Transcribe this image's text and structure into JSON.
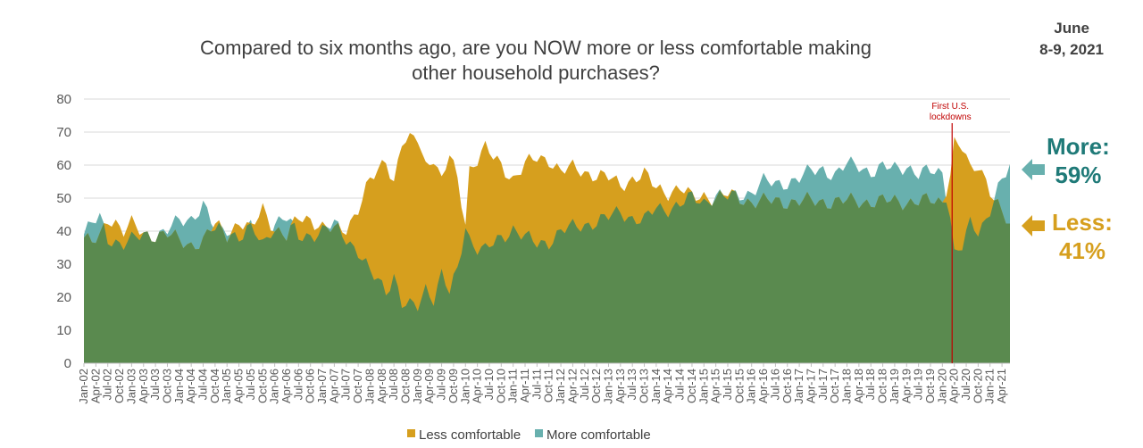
{
  "header": {
    "title": "Compared to six months ago, are you NOW more or less comfortable making\nother household purchases?",
    "date_line1": "June",
    "date_line2": "8-9, 2021"
  },
  "callouts": {
    "more_label": "More:",
    "more_value": "59%",
    "less_label": "Less:",
    "less_value": "41%"
  },
  "colors": {
    "less": "#d69f1e",
    "more": "#68b0ae",
    "overlap": "#5a8a4f",
    "annotation": "#c00000"
  },
  "chart_data": {
    "type": "area",
    "ylim": [
      0,
      80
    ],
    "yticks": [
      0,
      10,
      20,
      30,
      40,
      50,
      60,
      70,
      80
    ],
    "grid": true,
    "legend_position": "bottom",
    "x_start": "2002-01",
    "x_end": "2021-06",
    "x_tick_labels": [
      "Jan-02",
      "Apr-02",
      "Jul-02",
      "Oct-02",
      "Jan-03",
      "Apr-03",
      "Jul-03",
      "Oct-03",
      "Jan-04",
      "Apr-04",
      "Jul-04",
      "Oct-04",
      "Jan-05",
      "Apr-05",
      "Jul-05",
      "Oct-05",
      "Jan-06",
      "Apr-06",
      "Jul-06",
      "Oct-06",
      "Jan-07",
      "Apr-07",
      "Jul-07",
      "Oct-07",
      "Jan-08",
      "Apr-08",
      "Jul-08",
      "Oct-08",
      "Jan-09",
      "Apr-09",
      "Jul-09",
      "Oct-09",
      "Jan-10",
      "Apr-10",
      "Jul-10",
      "Oct-10",
      "Jan-11",
      "Apr-11",
      "Jul-11",
      "Oct-11",
      "Jan-12",
      "Apr-12",
      "Jul-12",
      "Oct-12",
      "Jan-13",
      "Apr-13",
      "Jul-13",
      "Oct-13",
      "Jan-14",
      "Apr-14",
      "Jul-14",
      "Oct-14",
      "Jan-15",
      "Apr-15",
      "Jul-15",
      "Oct-15",
      "Jan-16",
      "Apr-16",
      "Jul-16",
      "Oct-16",
      "Jan-17",
      "Apr-17",
      "Jul-17",
      "Oct-17",
      "Jan-18",
      "Apr-18",
      "Jul-18",
      "Oct-18",
      "Jan-19",
      "Apr-19",
      "Jul-19",
      "Oct-19",
      "Jan-20",
      "Apr-20",
      "Jul-20",
      "Oct-20",
      "Jan-21",
      "Apr-21"
    ],
    "series": [
      {
        "name": "Less comfortable",
        "color": "#d69f1e",
        "points": [
          [
            "2002-01",
            38
          ],
          [
            "2002-03",
            36
          ],
          [
            "2002-05",
            38
          ],
          [
            "2002-07",
            44
          ],
          [
            "2002-09",
            43
          ],
          [
            "2002-11",
            40
          ],
          [
            "2003-01",
            42
          ],
          [
            "2003-04",
            39
          ],
          [
            "2003-07",
            39
          ],
          [
            "2003-10",
            39
          ],
          [
            "2004-01",
            37
          ],
          [
            "2004-04",
            36
          ],
          [
            "2004-07",
            37
          ],
          [
            "2004-10",
            42
          ],
          [
            "2005-01",
            39
          ],
          [
            "2005-04",
            43
          ],
          [
            "2005-07",
            40
          ],
          [
            "2005-10",
            47
          ],
          [
            "2006-01",
            41
          ],
          [
            "2006-04",
            38
          ],
          [
            "2006-07",
            44
          ],
          [
            "2006-10",
            44
          ],
          [
            "2007-01",
            41
          ],
          [
            "2007-04",
            40
          ],
          [
            "2007-07",
            41
          ],
          [
            "2007-10",
            47
          ],
          [
            "2008-01",
            55
          ],
          [
            "2008-03",
            58
          ],
          [
            "2008-05",
            62
          ],
          [
            "2008-07",
            55
          ],
          [
            "2008-09",
            67
          ],
          [
            "2008-11",
            67
          ],
          [
            "2009-01",
            68
          ],
          [
            "2009-03",
            60
          ],
          [
            "2009-05",
            63
          ],
          [
            "2009-07",
            55
          ],
          [
            "2009-09",
            63
          ],
          [
            "2009-11",
            55
          ],
          [
            "2010-01",
            43
          ],
          [
            "2010-02",
            59
          ],
          [
            "2010-04",
            62
          ],
          [
            "2010-06",
            65
          ],
          [
            "2010-08",
            62
          ],
          [
            "2010-10",
            60
          ],
          [
            "2011-01",
            56
          ],
          [
            "2011-04",
            60
          ],
          [
            "2011-07",
            62
          ],
          [
            "2011-10",
            62
          ],
          [
            "2012-01",
            58
          ],
          [
            "2012-04",
            59
          ],
          [
            "2012-07",
            58
          ],
          [
            "2012-10",
            57
          ],
          [
            "2013-01",
            56
          ],
          [
            "2013-04",
            54
          ],
          [
            "2013-07",
            56
          ],
          [
            "2013-10",
            57
          ],
          [
            "2014-01",
            53
          ],
          [
            "2014-04",
            52
          ],
          [
            "2014-07",
            53
          ],
          [
            "2014-10",
            50
          ],
          [
            "2015-01",
            51
          ],
          [
            "2015-04",
            50
          ],
          [
            "2015-07",
            51
          ],
          [
            "2015-10",
            50
          ],
          [
            "2016-01",
            49
          ],
          [
            "2020-01",
            49
          ],
          [
            "2020-03",
            58
          ],
          [
            "2020-04",
            67
          ],
          [
            "2020-06",
            65
          ],
          [
            "2020-08",
            58
          ],
          [
            "2020-10",
            60
          ],
          [
            "2020-12",
            56
          ],
          [
            "2021-02",
            50
          ],
          [
            "2021-04",
            45
          ],
          [
            "2021-06",
            41
          ]
        ]
      },
      {
        "name": "More comfortable",
        "color": "#68b0ae",
        "points": [
          [
            "2002-01",
            39
          ],
          [
            "2002-03",
            42
          ],
          [
            "2002-05",
            44
          ],
          [
            "2002-07",
            38
          ],
          [
            "2002-09",
            37
          ],
          [
            "2002-11",
            36
          ],
          [
            "2003-01",
            37
          ],
          [
            "2003-04",
            39
          ],
          [
            "2003-07",
            39
          ],
          [
            "2003-10",
            40
          ],
          [
            "2004-01",
            43
          ],
          [
            "2004-04",
            44
          ],
          [
            "2004-07",
            48
          ],
          [
            "2004-10",
            40
          ],
          [
            "2005-01",
            41
          ],
          [
            "2005-04",
            38
          ],
          [
            "2005-07",
            41
          ],
          [
            "2005-10",
            36
          ],
          [
            "2006-01",
            43
          ],
          [
            "2006-04",
            44
          ],
          [
            "2006-07",
            38
          ],
          [
            "2006-10",
            39
          ],
          [
            "2007-01",
            40
          ],
          [
            "2007-04",
            42
          ],
          [
            "2007-07",
            38
          ],
          [
            "2007-10",
            34
          ],
          [
            "2008-01",
            27
          ],
          [
            "2008-03",
            25
          ],
          [
            "2008-05",
            22
          ],
          [
            "2008-07",
            27
          ],
          [
            "2008-09",
            18
          ],
          [
            "2008-11",
            17
          ],
          [
            "2009-01",
            17
          ],
          [
            "2009-03",
            23
          ],
          [
            "2009-05",
            20
          ],
          [
            "2009-07",
            27
          ],
          [
            "2009-09",
            21
          ],
          [
            "2009-11",
            28
          ],
          [
            "2010-01",
            42
          ],
          [
            "2010-02",
            38
          ],
          [
            "2010-04",
            35
          ],
          [
            "2010-06",
            34
          ],
          [
            "2010-08",
            36
          ],
          [
            "2010-10",
            38
          ],
          [
            "2011-01",
            41
          ],
          [
            "2011-04",
            38
          ],
          [
            "2011-07",
            36
          ],
          [
            "2011-10",
            37
          ],
          [
            "2012-01",
            40
          ],
          [
            "2012-04",
            41
          ],
          [
            "2012-07",
            42
          ],
          [
            "2012-10",
            43
          ],
          [
            "2013-01",
            44
          ],
          [
            "2013-04",
            46
          ],
          [
            "2013-07",
            44
          ],
          [
            "2013-10",
            43
          ],
          [
            "2014-01",
            47
          ],
          [
            "2014-04",
            47
          ],
          [
            "2014-07",
            48
          ],
          [
            "2014-10",
            50
          ],
          [
            "2015-01",
            49
          ],
          [
            "2015-04",
            51
          ],
          [
            "2015-07",
            50
          ],
          [
            "2015-10",
            51
          ],
          [
            "2016-01",
            52
          ],
          [
            "2016-04",
            55
          ],
          [
            "2016-07",
            54
          ],
          [
            "2016-10",
            55
          ],
          [
            "2017-01",
            56
          ],
          [
            "2017-04",
            58
          ],
          [
            "2017-07",
            59
          ],
          [
            "2017-10",
            57
          ],
          [
            "2018-01",
            60
          ],
          [
            "2018-04",
            60
          ],
          [
            "2018-07",
            58
          ],
          [
            "2018-10",
            59
          ],
          [
            "2019-01",
            59
          ],
          [
            "2019-04",
            60
          ],
          [
            "2019-07",
            57
          ],
          [
            "2019-10",
            58
          ],
          [
            "2020-01",
            58
          ],
          [
            "2020-03",
            45
          ],
          [
            "2020-04",
            33
          ],
          [
            "2020-06",
            35
          ],
          [
            "2020-08",
            42
          ],
          [
            "2020-10",
            40
          ],
          [
            "2020-12",
            44
          ],
          [
            "2021-02",
            50
          ],
          [
            "2021-04",
            55
          ],
          [
            "2021-06",
            59
          ]
        ]
      }
    ],
    "annotations": [
      {
        "x": "2020-03",
        "text_line1": "First U.S.",
        "text_line2": "lockdowns"
      }
    ]
  },
  "legend": {
    "less_label": "Less comfortable",
    "more_label": "More comfortable"
  }
}
